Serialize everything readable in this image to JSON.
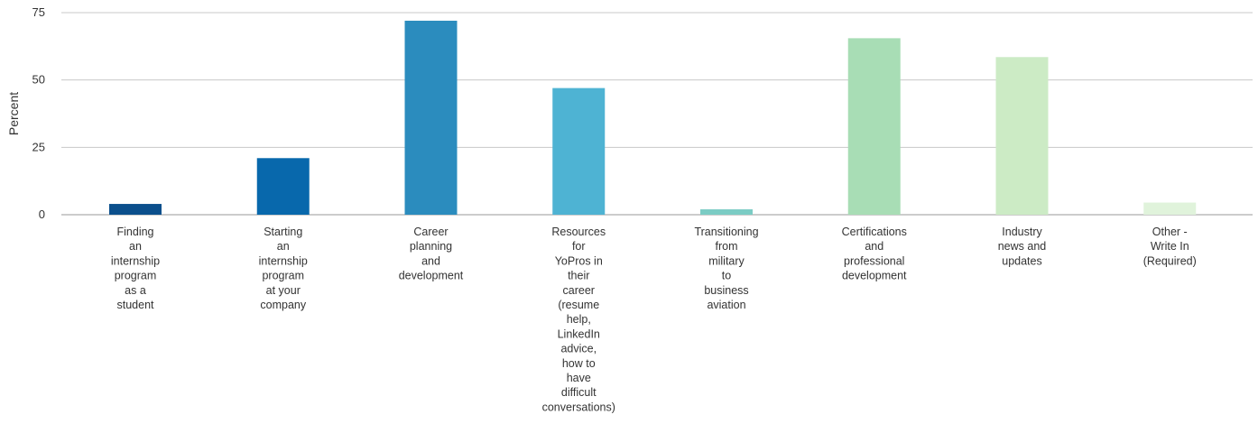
{
  "chart_data": {
    "type": "bar",
    "title": "",
    "xlabel": "",
    "ylabel": "Percent",
    "ylim": [
      0,
      75
    ],
    "yticks": [
      0,
      25,
      50,
      75
    ],
    "grid": true,
    "legend": "none",
    "categories": [
      [
        "Finding",
        "an",
        "internship",
        "program",
        "as a",
        "student"
      ],
      [
        "Starting",
        "an",
        "internship",
        "program",
        "at your",
        "company"
      ],
      [
        "Career",
        "planning",
        "and",
        "development"
      ],
      [
        "Resources",
        "for",
        "YoPros in",
        "their",
        "career",
        "(resume",
        "help,",
        "LinkedIn",
        "advice,",
        "how to",
        "have",
        "difficult",
        "conversations)"
      ],
      [
        "Transitioning",
        "from",
        "military",
        "to",
        "business",
        "aviation"
      ],
      [
        "Certifications",
        "and",
        "professional",
        "development"
      ],
      [
        "Industry",
        "news and",
        "updates"
      ],
      [
        "Other -",
        "Write In",
        "(Required)"
      ]
    ],
    "values": [
      4,
      21,
      72,
      47,
      2,
      65.5,
      58.5,
      4.5
    ],
    "colors": [
      "#0b4f8c",
      "#0868ac",
      "#2b8cbe",
      "#4eb3d3",
      "#7bccc4",
      "#a8ddb5",
      "#ccebc5",
      "#e0f3db"
    ]
  }
}
